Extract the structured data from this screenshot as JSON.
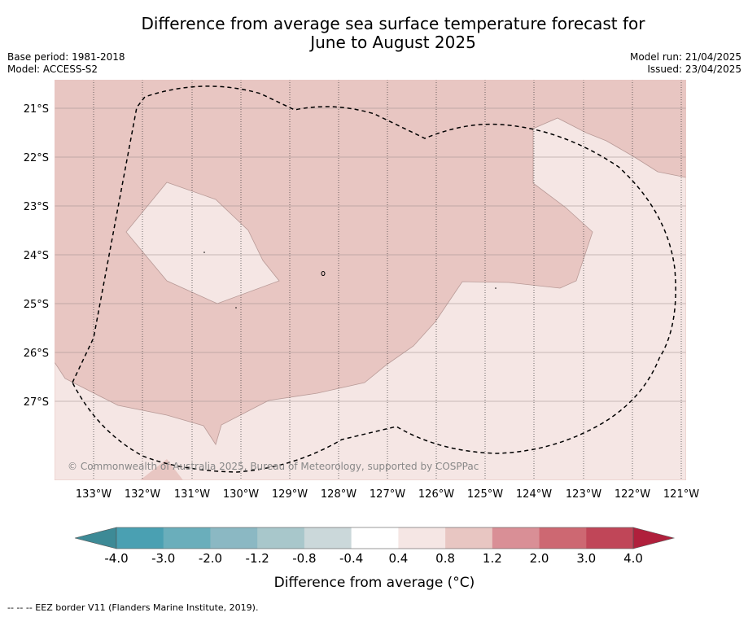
{
  "header": {
    "title_line1": "Difference from average sea surface temperature forecast for",
    "title_line2": "June to August 2025",
    "base_period": "Base period: 1981-2018",
    "model": "Model: ACCESS-S2",
    "model_run": "Model run: 21/04/2025",
    "issued": "Issued: 23/04/2025"
  },
  "map": {
    "lat_labels": [
      "21°S",
      "22°S",
      "23°S",
      "24°S",
      "25°S",
      "26°S",
      "27°S"
    ],
    "lon_labels": [
      "133°W",
      "132°W",
      "131°W",
      "130°W",
      "129°W",
      "128°W",
      "127°W",
      "126°W",
      "125°W",
      "124°W",
      "123°W",
      "122°W",
      "121°W"
    ],
    "copyright": "© Commonwealth of Australia 2025, Bureau of Meteorology, supported by COSPPac",
    "colors": {
      "range_0_8_to_1_2": "#e8c6c2",
      "range_0_4_to_0_8": "#f5e6e4",
      "eez_border": "#000000"
    }
  },
  "colorbar": {
    "ticks": [
      "-4.0",
      "-3.0",
      "-2.0",
      "-1.2",
      "-0.8",
      "-0.4",
      "0.4",
      "0.8",
      "1.2",
      "2.0",
      "3.0",
      "4.0"
    ],
    "colors": [
      "#3d8a96",
      "#4aa0b2",
      "#6aaebb",
      "#8bb8c3",
      "#a8c7cb",
      "#cbd8da",
      "#ffffff",
      "#f5e6e4",
      "#e8c6c2",
      "#d98f96",
      "#cd6872",
      "#c04658",
      "#b0203c"
    ],
    "title": "Difference from average (°C)"
  },
  "footnote": "--  --  -- EEZ border V11 (Flanders Marine Institute, 2019)."
}
